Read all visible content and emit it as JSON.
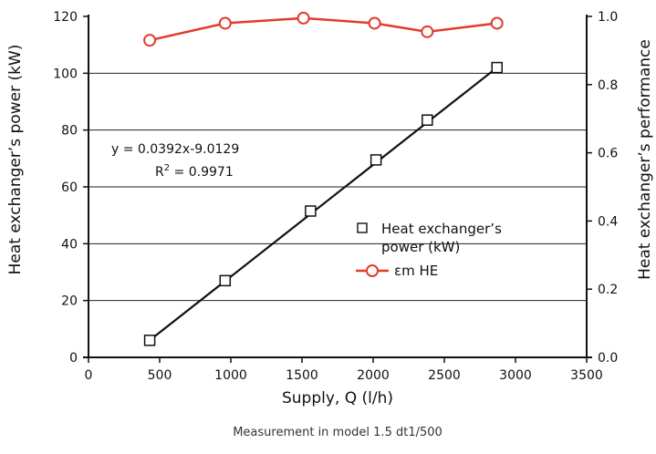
{
  "chart_data": {
    "type": "line",
    "xlabel": "Supply, Q (l/h)",
    "ylabel_left": "Heat exchanger’s power (kW)",
    "ylabel_right": "Heat exchanger’s performance",
    "caption": "Measurement in model 1.5 dt1/500",
    "xlim": [
      0,
      3500
    ],
    "ylim_left": [
      0,
      120
    ],
    "ylim_right": [
      0.0,
      1.0
    ],
    "xticks": [
      "0",
      "500",
      "1000",
      "1500",
      "2000",
      "2500",
      "3000",
      "3500"
    ],
    "yticks_left": [
      "0",
      "20",
      "40",
      "60",
      "80",
      "100",
      "120"
    ],
    "yticks_right": [
      "0.0",
      "0.2",
      "0.4",
      "0.6",
      "0.8",
      "1.0"
    ],
    "grid": "horizontal",
    "legend_position": "center-right",
    "series": [
      {
        "name": "Heat exchanger’s power (kW)",
        "axis": "left",
        "marker": "square",
        "color": "#111111",
        "x": [
          430,
          960,
          1560,
          2020,
          2380,
          2870
        ],
        "y": [
          6,
          27,
          51.5,
          69.5,
          83.5,
          102
        ]
      },
      {
        "name": "εm HE",
        "axis": "right",
        "marker": "circle",
        "color": "#e23b2e",
        "x": [
          430,
          960,
          1510,
          2010,
          2380,
          2870
        ],
        "y": [
          0.93,
          0.98,
          0.995,
          0.98,
          0.955,
          0.98
        ]
      }
    ],
    "trendline": {
      "series": "Heat exchanger’s power (kW)",
      "equation": "y = 0.0392x-9.0129",
      "r2_prefix": "R",
      "r2_exp": "2",
      "r2_value": " = 0.9971"
    }
  }
}
